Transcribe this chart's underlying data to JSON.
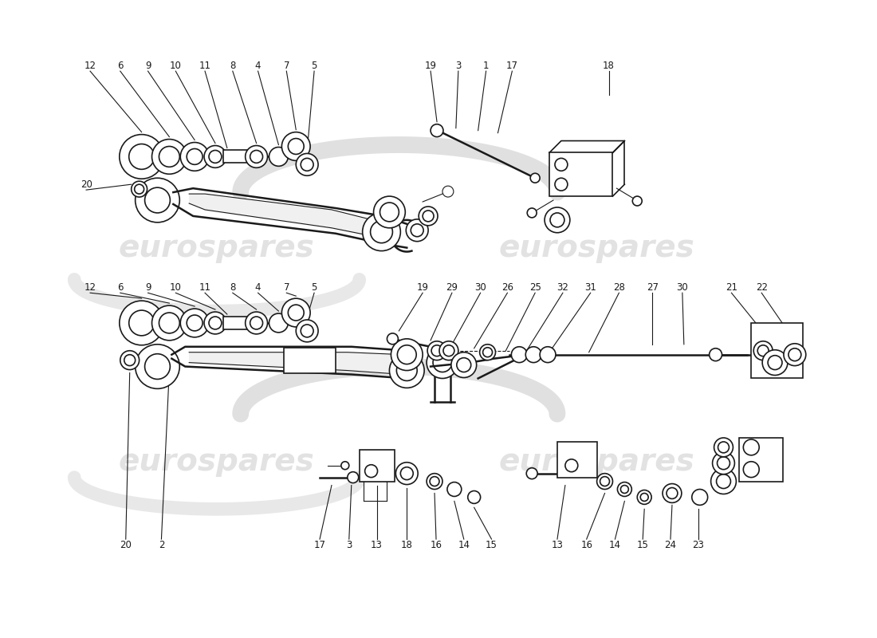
{
  "bg_color": "#ffffff",
  "line_color": "#1a1a1a",
  "watermark_color": "#d0d0d0",
  "watermark_text": "eurospares",
  "figsize": [
    11.0,
    8.0
  ],
  "dpi": 100
}
